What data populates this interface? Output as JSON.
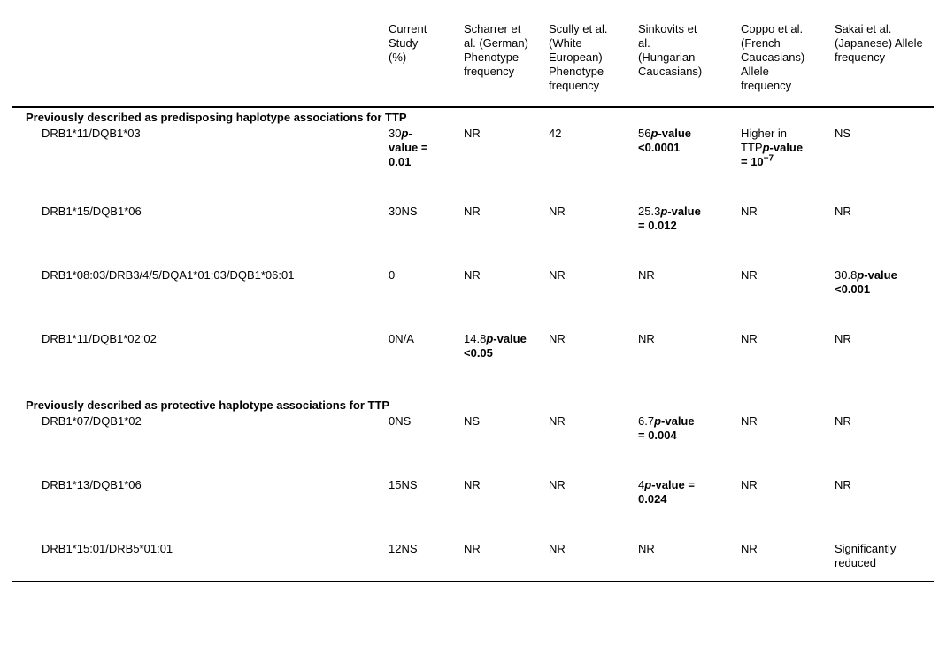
{
  "table": {
    "columns": [
      {
        "label": ""
      },
      {
        "label": "Current Study (%)"
      },
      {
        "label": "Scharrer et al. (German) Phenotype frequency"
      },
      {
        "label": "Scully et al. (White European) Phenotype frequency"
      },
      {
        "label": "Sinkovits et al. (Hungarian Caucasians)"
      },
      {
        "label": "Coppo et al. (French Caucasians) Allele frequency"
      },
      {
        "label": "Sakai et al. (Japanese) Allele frequency"
      }
    ],
    "sections": [
      {
        "header": "Previously described as predisposing haplotype associations for TTP",
        "rows": [
          {
            "haplotype": "DRB1*11/DQB1*03",
            "cells": [
              {
                "plain": "30",
                "bold": "p-value = 0.01"
              },
              {
                "plain": "NR"
              },
              {
                "plain": "42"
              },
              {
                "plain": "56",
                "bold": "p-value <0.0001"
              },
              {
                "plain": "Higher in TTP",
                "bold": "p-value = 10^-7"
              },
              {
                "plain": "NS"
              }
            ]
          },
          {
            "haplotype": "DRB1*15/DQB1*06",
            "cells": [
              {
                "plain": "30NS"
              },
              {
                "plain": "NR"
              },
              {
                "plain": "NR"
              },
              {
                "plain": "25.3",
                "bold": "p-value = 0.012"
              },
              {
                "plain": "NR"
              },
              {
                "plain": "NR"
              }
            ]
          },
          {
            "haplotype": "DRB1*08:03/DRB3/4/5/DQA1*01:03/DQB1*06:01",
            "cells": [
              {
                "plain": "0"
              },
              {
                "plain": "NR"
              },
              {
                "plain": "NR"
              },
              {
                "plain": "NR"
              },
              {
                "plain": "NR"
              },
              {
                "plain": "30.8",
                "bold": "p-value <0.001"
              }
            ]
          },
          {
            "haplotype": "DRB1*11/DQB1*02:02",
            "cells": [
              {
                "plain": "0N/A"
              },
              {
                "plain": "14.8",
                "bold": "p-value <0.05"
              },
              {
                "plain": "NR"
              },
              {
                "plain": "NR"
              },
              {
                "plain": "NR"
              },
              {
                "plain": "NR"
              }
            ]
          }
        ]
      },
      {
        "header": "Previously described as protective haplotype associations for TTP",
        "rows": [
          {
            "haplotype": "DRB1*07/DQB1*02",
            "cells": [
              {
                "plain": "0NS"
              },
              {
                "plain": "NS"
              },
              {
                "plain": "NR"
              },
              {
                "plain": "6.7",
                "bold": "p-value = 0.004"
              },
              {
                "plain": "NR"
              },
              {
                "plain": "NR"
              }
            ]
          },
          {
            "haplotype": "DRB1*13/DQB1*06",
            "cells": [
              {
                "plain": "15NS"
              },
              {
                "plain": "NR"
              },
              {
                "plain": "NR"
              },
              {
                "plain": "4",
                "bold": "p-value = 0.024"
              },
              {
                "plain": "NR"
              },
              {
                "plain": "NR"
              }
            ]
          },
          {
            "haplotype": "DRB1*15:01/DRB5*01:01",
            "cells": [
              {
                "plain": "12NS"
              },
              {
                "plain": "NR"
              },
              {
                "plain": "NR"
              },
              {
                "plain": "NR"
              },
              {
                "plain": "NR"
              },
              {
                "plain": "Significantly reduced"
              }
            ]
          }
        ]
      }
    ]
  }
}
